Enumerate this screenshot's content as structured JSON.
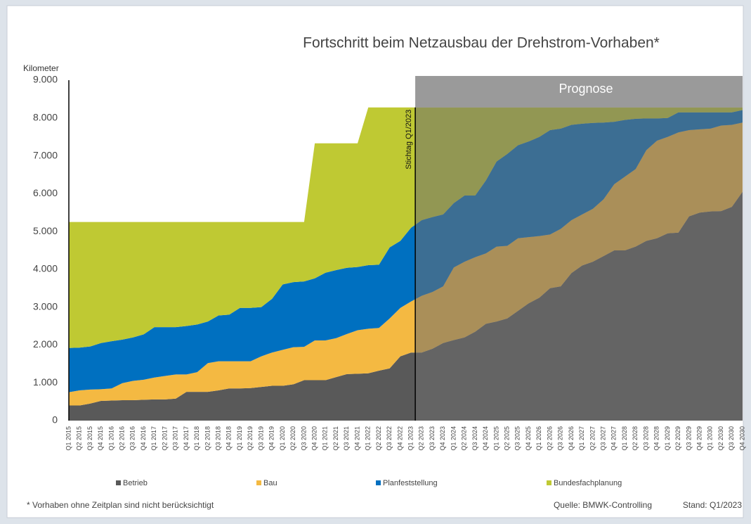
{
  "chart_data": {
    "type": "area",
    "stacked": true,
    "title": "Fortschritt beim Netzausbau der Drehstrom-Vorhaben*",
    "y_label": "Kilometer",
    "annotations": {
      "cutoff": "Stichtag Q1/2023",
      "forecast": "Prognose"
    },
    "footnote": "* Vorhaben ohne Zeitplan sind nicht berücksichtigt",
    "source": "Quelle: BMWK-Controlling",
    "status": "Stand: Q1/2023",
    "categories": [
      "Q1 2015",
      "Q2 2015",
      "Q3 2015",
      "Q4 2015",
      "Q1 2016",
      "Q2 2016",
      "Q3 2016",
      "Q4 2016",
      "Q1 2017",
      "Q2 2017",
      "Q3 2017",
      "Q4 2017",
      "Q1 2018",
      "Q2 2018",
      "Q3 2018",
      "Q4 2018",
      "Q1 2019",
      "Q2 2019",
      "Q3 2019",
      "Q4 2019",
      "Q1 2020",
      "Q2 2020",
      "Q3 2020",
      "Q4 2020",
      "Q1 2021",
      "Q2 2021",
      "Q3 2021",
      "Q4 2021",
      "Q1 2022",
      "Q2 2022",
      "Q3 2022",
      "Q4 2022",
      "Q1 2023",
      "Q2 2023",
      "Q3 2023",
      "Q4 2023",
      "Q1 2024",
      "Q2 2024",
      "Q3 2024",
      "Q4 2024",
      "Q1 2025",
      "Q2 2025",
      "Q3 2025",
      "Q4 2025",
      "Q1 2026",
      "Q2 2026",
      "Q3 2026",
      "Q4 2026",
      "Q1 2027",
      "Q2 2027",
      "Q3 2027",
      "Q4 2027",
      "Q1 2028",
      "Q2 2028",
      "Q3 2028",
      "Q4 2028",
      "Q1 2029",
      "Q2 2029",
      "Q3 2029",
      "Q4 2029",
      "Q1 2030",
      "Q2 2030",
      "Q3 2030",
      "Q4 2030"
    ],
    "series": [
      {
        "name": "Betrieb",
        "color": "#595959",
        "values": [
          400,
          400,
          450,
          520,
          530,
          540,
          540,
          550,
          560,
          560,
          580,
          760,
          760,
          760,
          800,
          850,
          850,
          860,
          890,
          920,
          920,
          960,
          1070,
          1070,
          1070,
          1150,
          1230,
          1240,
          1250,
          1320,
          1380,
          1700,
          1800,
          1800,
          1900,
          2050,
          2130,
          2200,
          2350,
          2560,
          2620,
          2700,
          2900,
          3100,
          3250,
          3500,
          3550,
          3900,
          4100,
          4200,
          4350,
          4500,
          4500,
          4600,
          4750,
          4820,
          4950,
          4970,
          5400,
          5500,
          5530,
          5540,
          5650,
          6050
        ]
      },
      {
        "name": "Bau",
        "color": "#f4b942",
        "values": [
          350,
          400,
          370,
          310,
          320,
          450,
          510,
          530,
          580,
          620,
          640,
          460,
          520,
          760,
          770,
          720,
          720,
          710,
          810,
          880,
          950,
          980,
          880,
          1050,
          1050,
          1030,
          1060,
          1150,
          1180,
          1130,
          1320,
          1280,
          1350,
          1500,
          1500,
          1500,
          1920,
          2000,
          1970,
          1860,
          1980,
          1920,
          1920,
          1750,
          1630,
          1420,
          1520,
          1400,
          1350,
          1400,
          1500,
          1750,
          1950,
          2050,
          2400,
          2580,
          2550,
          2650,
          2280,
          2200,
          2190,
          2260,
          2170,
          1830
        ]
      },
      {
        "name": "Planfeststellung",
        "color": "#0070c0",
        "values": [
          1170,
          1130,
          1140,
          1220,
          1250,
          1150,
          1150,
          1200,
          1330,
          1290,
          1250,
          1280,
          1260,
          1100,
          1210,
          1230,
          1410,
          1410,
          1300,
          1420,
          1730,
          1720,
          1730,
          1640,
          1790,
          1800,
          1750,
          1670,
          1680,
          1670,
          1880,
          1770,
          1950,
          2000,
          1980,
          1900,
          1700,
          1750,
          1630,
          1930,
          2250,
          2430,
          2460,
          2530,
          2620,
          2760,
          2650,
          2520,
          2400,
          2270,
          2030,
          1650,
          1500,
          1330,
          840,
          590,
          500,
          530,
          470,
          450,
          430,
          350,
          330,
          330
        ]
      },
      {
        "name": "Bundesfachplanung",
        "color": "#bfc933",
        "values": [
          3330,
          3320,
          3290,
          3200,
          3150,
          3110,
          3050,
          2970,
          2780,
          2780,
          2780,
          2750,
          2710,
          2630,
          2470,
          2450,
          2270,
          2270,
          2250,
          2030,
          1650,
          1590,
          1570,
          3570,
          3420,
          3350,
          3290,
          3270,
          4170,
          4160,
          3700,
          3530,
          3180,
          2980,
          2900,
          2830,
          2530,
          2330,
          2330,
          1930,
          1430,
          1230,
          1000,
          900,
          780,
          600,
          560,
          460,
          430,
          410,
          400,
          380,
          330,
          300,
          290,
          290,
          280,
          130,
          130,
          130,
          130,
          130,
          130,
          70
        ]
      }
    ],
    "ylim": [
      0,
      9000
    ],
    "yticks": [
      0,
      {
        "value": 1000,
        "label": "1.000"
      },
      {
        "value": 2000,
        "label": "2.000"
      },
      {
        "value": 3000,
        "label": "3.000"
      },
      {
        "value": 4000,
        "label": "4.000"
      },
      {
        "value": 5000,
        "label": "5.000"
      },
      {
        "value": 6000,
        "label": "6.000"
      },
      {
        "value": 7000,
        "label": "7.000"
      },
      {
        "value": 8000,
        "label": "8.000"
      },
      {
        "value": 9000,
        "label": "9.000"
      }
    ],
    "grid": false
  }
}
